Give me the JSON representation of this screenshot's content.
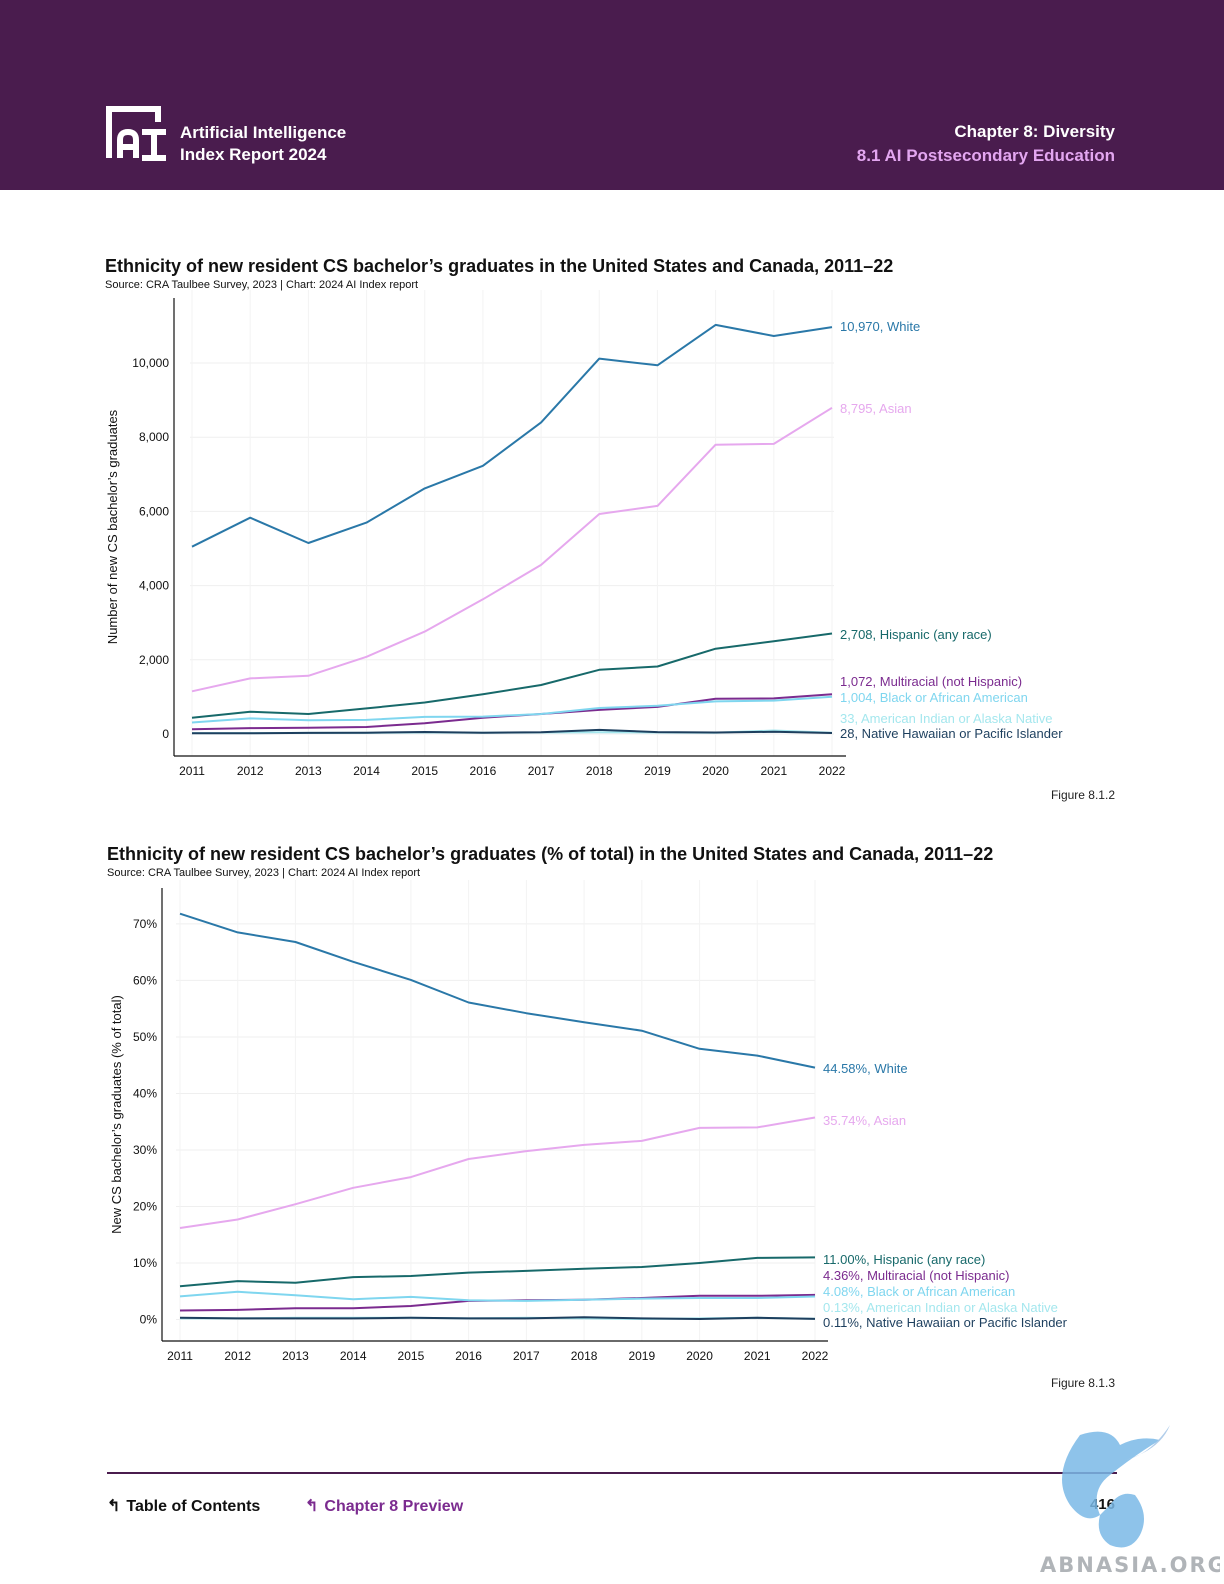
{
  "header": {
    "logo_line1": "Artificial Intelligence",
    "logo_line2": "Index Report 2024",
    "chapter": "Chapter 8: Diversity",
    "section": "8.1 AI Postsecondary Education"
  },
  "charts": {
    "c1": {
      "title": "Ethnicity of new resident CS bachelor’s graduates in the United States and Canada, 2011–22",
      "source": "Source: CRA Taulbee Survey, 2023 | Chart: 2024 AI Index report",
      "figure": "Figure 8.1.2"
    },
    "c2": {
      "title": "Ethnicity of new resident CS bachelor’s graduates (% of total) in the United States and Canada, 2011–22",
      "source": "Source: CRA Taulbee Survey, 2023 | Chart: 2024 AI Index report",
      "figure": "Figure 8.1.3"
    }
  },
  "chart_data": [
    {
      "type": "line",
      "title": "Ethnicity of new resident CS bachelor’s graduates in the United States and Canada, 2011–22",
      "ylabel": "Number of new CS bachelor’s graduates",
      "xlabel": "",
      "x": [
        2011,
        2012,
        2013,
        2014,
        2015,
        2016,
        2017,
        2018,
        2019,
        2020,
        2021,
        2022
      ],
      "ylim": [
        0,
        11700
      ],
      "yticks": [
        0,
        2000,
        4000,
        6000,
        8000,
        10000
      ],
      "ytick_labels": [
        "0",
        "2,000",
        "4,000",
        "6,000",
        "8,000",
        "10,000"
      ],
      "grid": true,
      "series": [
        {
          "name": "White",
          "label": "10,970, White",
          "color": "#2a78a8",
          "values": [
            5050,
            5830,
            5150,
            5700,
            6620,
            7230,
            8400,
            10120,
            9940,
            11030,
            10730,
            10970
          ]
        },
        {
          "name": "Asian",
          "label": "8,795, Asian",
          "color": "#e6a8ee",
          "values": [
            1150,
            1500,
            1570,
            2080,
            2760,
            3630,
            4560,
            5930,
            6150,
            7800,
            7820,
            8795
          ]
        },
        {
          "name": "Hispanic (any race)",
          "label": "2,708, Hispanic (any race)",
          "color": "#17696a",
          "values": [
            440,
            600,
            540,
            690,
            850,
            1070,
            1320,
            1730,
            1820,
            2300,
            2500,
            2708
          ]
        },
        {
          "name": "Multiracial (not Hispanic)",
          "label": "1,072, Multiracial (not Hispanic)",
          "color": "#7b2b8f",
          "values": [
            130,
            160,
            170,
            190,
            290,
            440,
            540,
            650,
            730,
            950,
            960,
            1072
          ]
        },
        {
          "name": "Black or African American",
          "label": "1,004, Black or African American",
          "color": "#7fd6ef",
          "values": [
            310,
            420,
            370,
            380,
            460,
            470,
            540,
            700,
            760,
            880,
            900,
            1004
          ]
        },
        {
          "name": "American Indian or Alaska Native",
          "label": "33, American Indian or Alaska Native",
          "color": "#a4e7ee",
          "values": [
            25,
            25,
            30,
            30,
            40,
            35,
            40,
            45,
            40,
            35,
            95,
            33
          ]
        },
        {
          "name": "Native Hawaiian or Pacific Islander",
          "label": "28, Native Hawaiian or Pacific Islander",
          "color": "#1d3f5e",
          "values": [
            20,
            20,
            30,
            35,
            55,
            35,
            45,
            110,
            50,
            40,
            60,
            28
          ]
        }
      ]
    },
    {
      "type": "line",
      "title": "Ethnicity of new resident CS bachelor’s graduates (% of total) in the United States and Canada, 2011–22",
      "ylabel": "New CS bachelor’s graduates (% of total)",
      "xlabel": "",
      "x": [
        2011,
        2012,
        2013,
        2014,
        2015,
        2016,
        2017,
        2018,
        2019,
        2020,
        2021,
        2022
      ],
      "ylim": [
        -3.8,
        76
      ],
      "yticks": [
        0,
        10,
        20,
        30,
        40,
        50,
        60,
        70
      ],
      "ytick_labels": [
        "0%",
        "10%",
        "20%",
        "30%",
        "40%",
        "50%",
        "60%",
        "70%"
      ],
      "grid": true,
      "series": [
        {
          "name": "White",
          "label": "44.58%, White",
          "color": "#2a78a8",
          "values": [
            71.8,
            68.5,
            66.8,
            63.3,
            60.1,
            56.1,
            54.2,
            52.6,
            51.1,
            47.9,
            46.7,
            44.58
          ]
        },
        {
          "name": "Asian",
          "label": "35.74%, Asian",
          "color": "#e6a8ee",
          "values": [
            16.2,
            17.7,
            20.4,
            23.3,
            25.2,
            28.4,
            29.8,
            30.9,
            31.6,
            33.9,
            34.0,
            35.74
          ]
        },
        {
          "name": "Hispanic (any race)",
          "label": "11.00%, Hispanic (any race)",
          "color": "#17696a",
          "values": [
            5.9,
            6.8,
            6.5,
            7.5,
            7.7,
            8.3,
            8.6,
            9.0,
            9.3,
            10.0,
            10.9,
            11.0
          ]
        },
        {
          "name": "Multiracial (not Hispanic)",
          "label": "4.36%, Multiracial (not Hispanic)",
          "color": "#7b2b8f",
          "values": [
            1.6,
            1.7,
            2.0,
            2.0,
            2.4,
            3.3,
            3.4,
            3.5,
            3.8,
            4.2,
            4.2,
            4.36
          ]
        },
        {
          "name": "Black or African American",
          "label": "4.08%, Black or African American",
          "color": "#7fd6ef",
          "values": [
            4.1,
            4.9,
            4.3,
            3.6,
            4.0,
            3.4,
            3.3,
            3.5,
            3.7,
            3.8,
            3.8,
            4.08
          ]
        },
        {
          "name": "American Indian or Alaska Native",
          "label": "0.13%, American Indian or Alaska Native",
          "color": "#a4e7ee",
          "values": [
            0.2,
            0.2,
            0.3,
            0.3,
            0.3,
            0.2,
            0.3,
            0.2,
            0.1,
            0.2,
            0.3,
            0.13
          ]
        },
        {
          "name": "Native Hawaiian or Pacific Islander",
          "label": "0.11%, Native Hawaiian or Pacific Islander",
          "color": "#1d3f5e",
          "values": [
            0.3,
            0.2,
            0.2,
            0.2,
            0.3,
            0.2,
            0.2,
            0.4,
            0.2,
            0.1,
            0.3,
            0.11
          ]
        }
      ]
    }
  ],
  "footer": {
    "toc": "Table of Contents",
    "preview": "Chapter 8 Preview",
    "page": "416"
  },
  "watermark": {
    "text": "ABNASIA.ORG"
  }
}
